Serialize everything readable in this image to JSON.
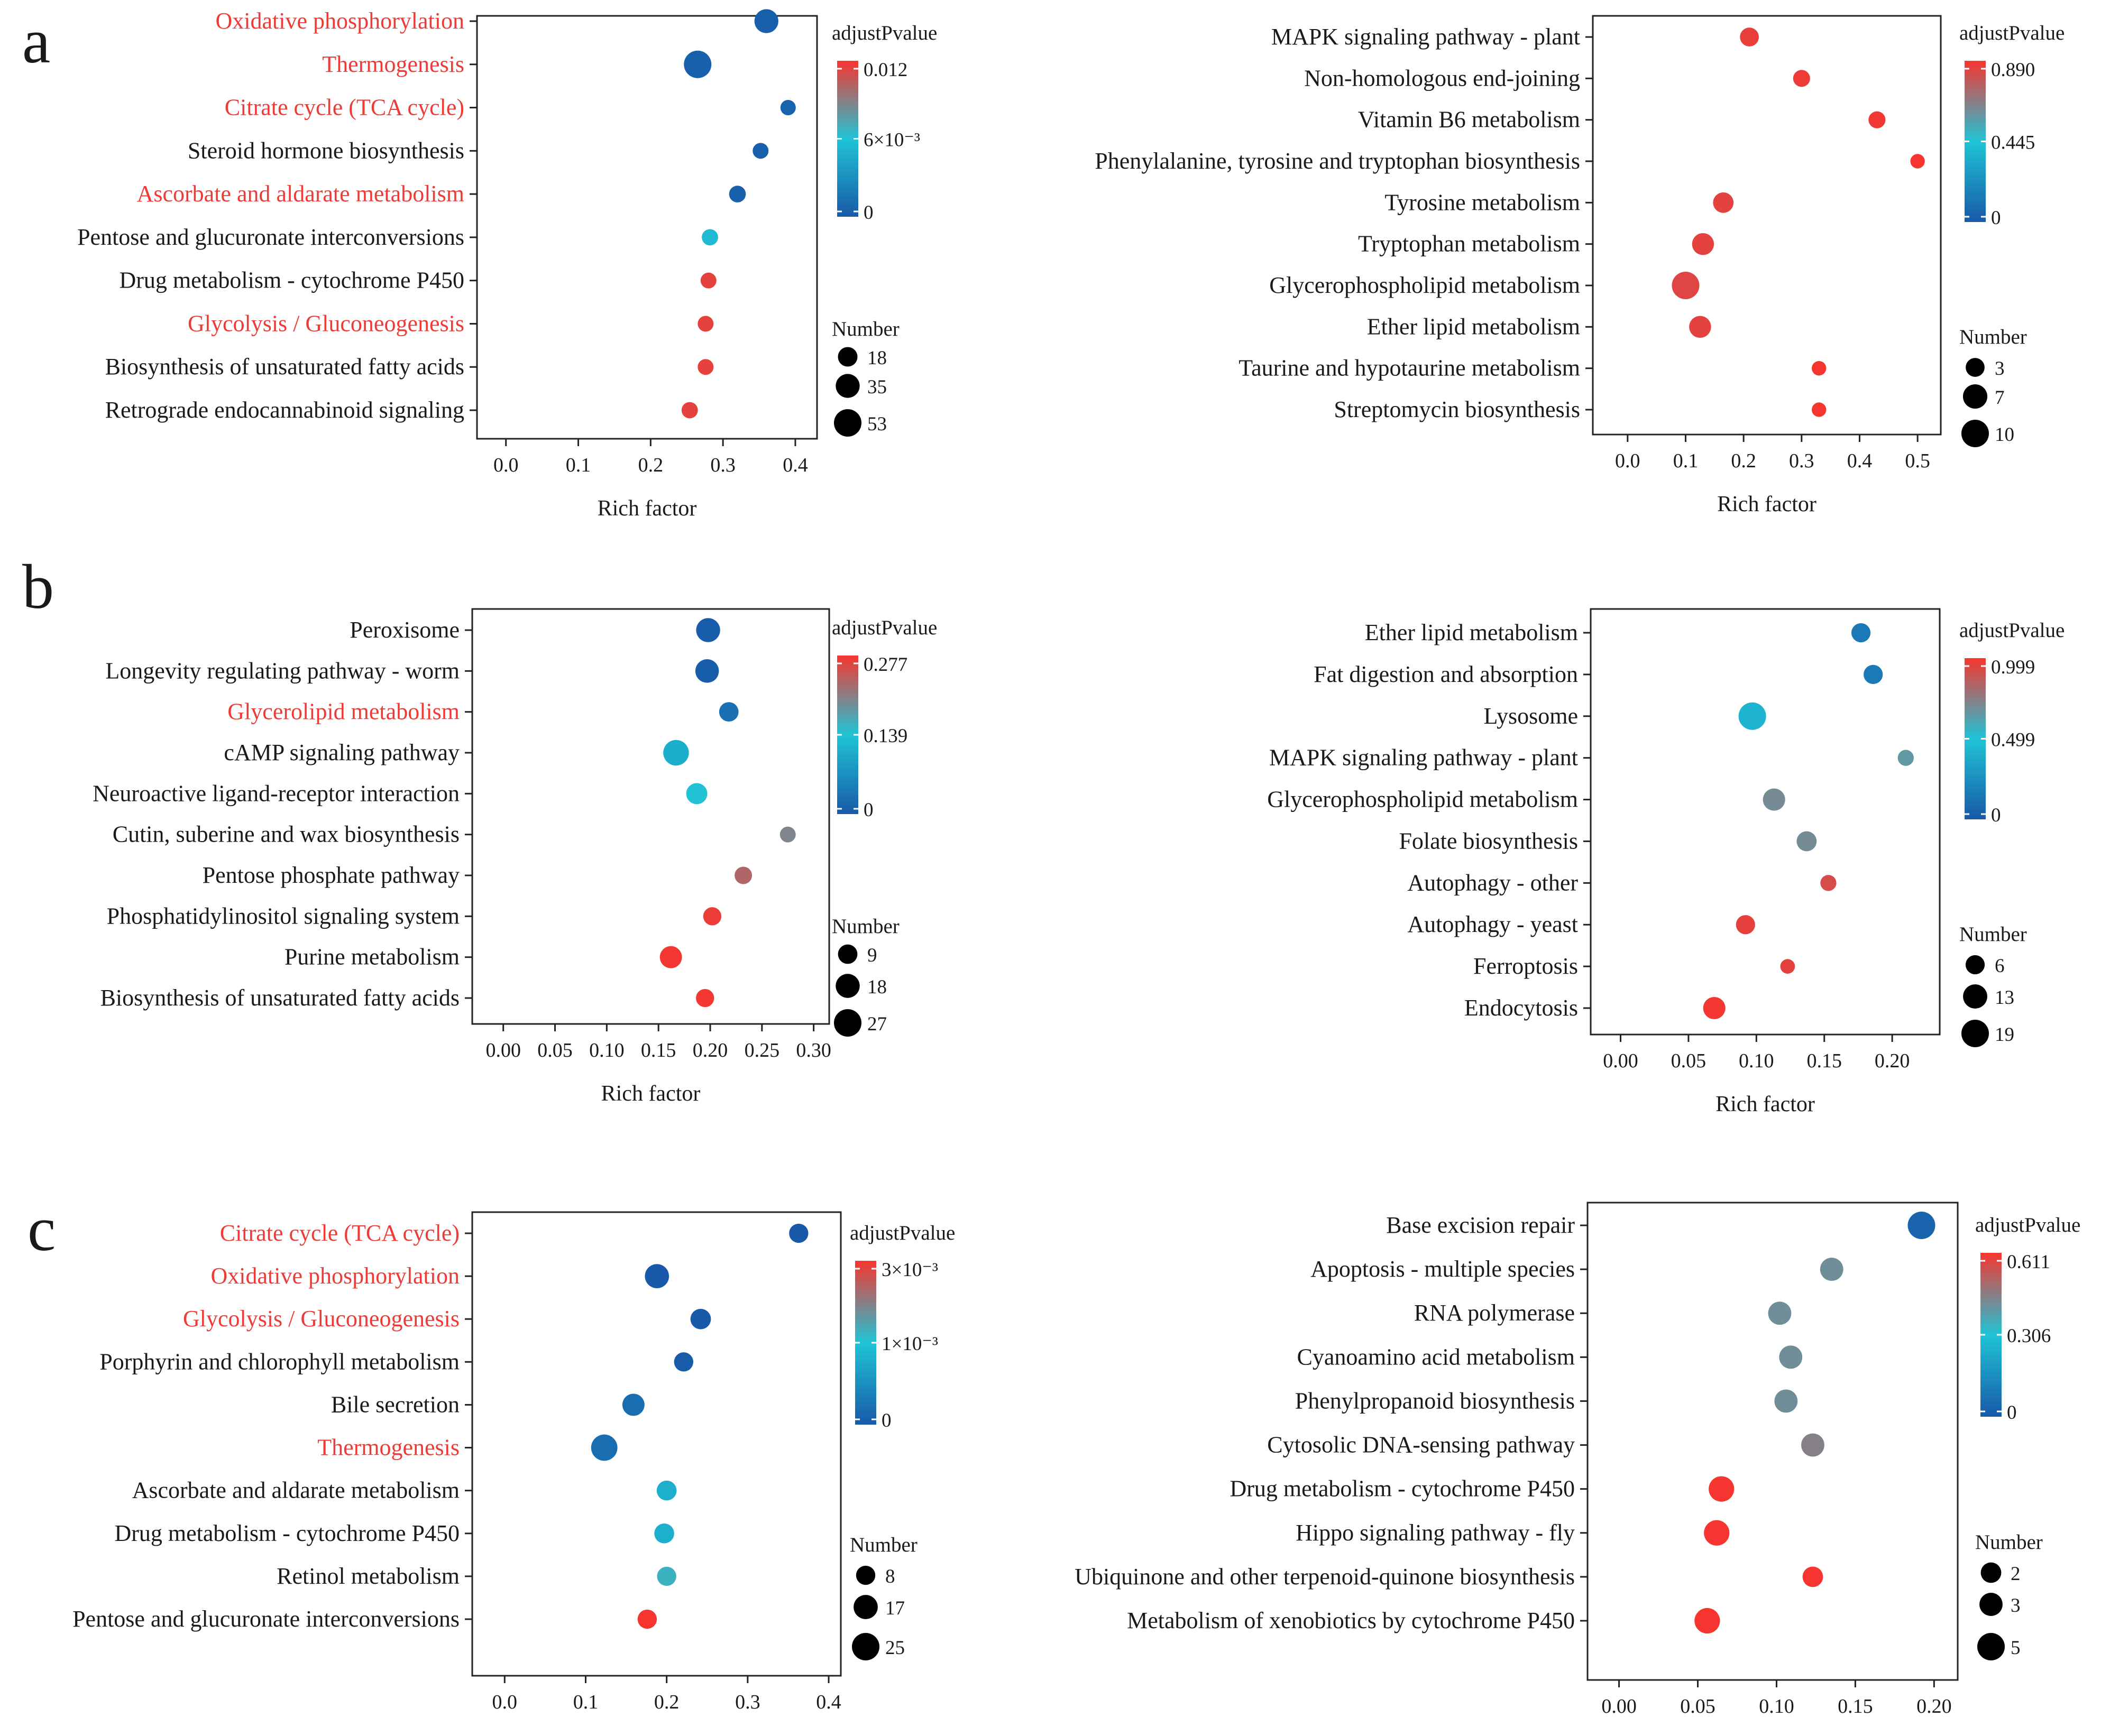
{
  "figure": {
    "panel_labels": [
      "a",
      "b",
      "c"
    ]
  },
  "colors": {
    "low": "#1859a8",
    "mid": "#1fc4d6",
    "high": "#f7352f",
    "highlight_label": "#ee3b36",
    "text": "#1a1a1a"
  },
  "chart_data": [
    {
      "id": "a-left",
      "panel": "a",
      "type": "scatter",
      "title": "",
      "xlabel": "Rich factor",
      "ylabel": "",
      "xlim": [
        -0.04,
        0.43
      ],
      "xticks": [
        0.0,
        0.1,
        0.2,
        0.3,
        0.4
      ],
      "xtick_labels": [
        "0.0",
        "0.1",
        "0.2",
        "0.3",
        "0.4"
      ],
      "grid": false,
      "categories": [
        "Oxidative phosphorylation",
        "Thermogenesis",
        "Citrate cycle (TCA cycle)",
        "Steroid hormone biosynthesis",
        "Ascorbate and aldarate metabolism",
        "Pentose and glucuronate interconversions",
        "Drug metabolism - cytochrome P450",
        "Glycolysis / Gluconeogenesis",
        "Biosynthesis of unsaturated fatty acids",
        "Retrograde endocannabinoid signaling"
      ],
      "highlighted": [
        true,
        true,
        true,
        false,
        true,
        false,
        false,
        true,
        false,
        false
      ],
      "rich_factor": [
        0.36,
        0.265,
        0.39,
        0.352,
        0.32,
        0.282,
        0.28,
        0.276,
        0.276,
        0.254
      ],
      "number": [
        35,
        53,
        7,
        8,
        10,
        9,
        8,
        8,
        8,
        9
      ],
      "adjustPvalue": [
        0.0004,
        0.0004,
        0.0005,
        0.0004,
        0.0004,
        0.0055,
        0.0115,
        0.0115,
        0.0115,
        0.0115
      ],
      "color_legend": {
        "title": "adjustPvalue",
        "range": [
          0,
          0.012
        ],
        "tick_labels": [
          "0.012",
          "6×10⁻³",
          "0"
        ]
      },
      "size_legend": {
        "title": "Number",
        "values": [
          18,
          35,
          53
        ],
        "labels": [
          "18",
          "35",
          "53"
        ]
      }
    },
    {
      "id": "a-right",
      "panel": "a",
      "type": "scatter",
      "title": "",
      "xlabel": "Rich factor",
      "ylabel": "",
      "xlim": [
        -0.06,
        0.54
      ],
      "xticks": [
        0.0,
        0.1,
        0.2,
        0.3,
        0.4,
        0.5
      ],
      "xtick_labels": [
        "0.0",
        "0.1",
        "0.2",
        "0.3",
        "0.4",
        "0.5"
      ],
      "grid": false,
      "categories": [
        "MAPK signaling pathway - plant",
        "Non-homologous end-joining",
        "Vitamin B6 metabolism",
        "Phenylalanine, tyrosine and tryptophan biosynthesis",
        "Tyrosine metabolism",
        "Tryptophan metabolism",
        "Glycerophospholipid metabolism",
        "Ether lipid metabolism",
        "Taurine and hypotaurine metabolism",
        "Streptomycin biosynthesis"
      ],
      "highlighted": [
        false,
        false,
        false,
        false,
        false,
        false,
        false,
        false,
        false,
        false
      ],
      "rich_factor": [
        0.21,
        0.3,
        0.43,
        0.5,
        0.165,
        0.13,
        0.1,
        0.125,
        0.33,
        0.33
      ],
      "number": [
        3,
        2,
        2,
        1,
        4,
        5,
        10,
        5,
        1,
        1
      ],
      "adjustPvalue": [
        0.86,
        0.87,
        0.88,
        0.89,
        0.85,
        0.85,
        0.84,
        0.85,
        0.89,
        0.89
      ],
      "color_legend": {
        "title": "adjustPvalue",
        "range": [
          0,
          0.89
        ],
        "tick_labels": [
          "0.890",
          "0.445",
          "0"
        ]
      },
      "size_legend": {
        "title": "Number",
        "values": [
          3,
          7,
          10
        ],
        "labels": [
          "3",
          "7",
          "10"
        ]
      }
    },
    {
      "id": "b-left",
      "panel": "b",
      "type": "scatter",
      "title": "",
      "xlabel": "Rich factor",
      "ylabel": "",
      "xlim": [
        -0.03,
        0.315
      ],
      "xticks": [
        0.0,
        0.05,
        0.1,
        0.15,
        0.2,
        0.25,
        0.3
      ],
      "xtick_labels": [
        "0.00",
        "0.05",
        "0.10",
        "0.15",
        "0.20",
        "0.25",
        "0.30"
      ],
      "grid": false,
      "categories": [
        "Peroxisome",
        "Longevity regulating pathway - worm",
        "Glycerolipid metabolism",
        "cAMP signaling pathway",
        "Neuroactive ligand-receptor interaction",
        "Cutin, suberine and wax biosynthesis",
        "Pentose phosphate pathway",
        "Phosphatidylinositol signaling system",
        "Purine metabolism",
        "Biosynthesis of unsaturated fatty acids"
      ],
      "highlighted": [
        false,
        false,
        true,
        false,
        false,
        false,
        false,
        false,
        false,
        false
      ],
      "rich_factor": [
        0.198,
        0.197,
        0.218,
        0.167,
        0.187,
        0.275,
        0.232,
        0.202,
        0.162,
        0.195
      ],
      "number": [
        18,
        17,
        9,
        22,
        12,
        4,
        6,
        7,
        14,
        7
      ],
      "adjustPvalue": [
        0.005,
        0.005,
        0.03,
        0.11,
        0.14,
        0.2,
        0.23,
        0.27,
        0.275,
        0.275
      ],
      "color_legend": {
        "title": "adjustPvalue",
        "range": [
          0,
          0.277
        ],
        "tick_labels": [
          "0.277",
          "0.139",
          "0"
        ]
      },
      "size_legend": {
        "title": "Number",
        "values": [
          9,
          18,
          27
        ],
        "labels": [
          "9",
          "18",
          "27"
        ]
      }
    },
    {
      "id": "b-right",
      "panel": "b",
      "type": "scatter",
      "title": "",
      "xlabel": "Rich factor",
      "ylabel": "",
      "xlim": [
        -0.022,
        0.235
      ],
      "xticks": [
        0.0,
        0.05,
        0.1,
        0.15,
        0.2
      ],
      "xtick_labels": [
        "0.00",
        "0.05",
        "0.10",
        "0.15",
        "0.20"
      ],
      "grid": false,
      "categories": [
        "Ether lipid metabolism",
        "Fat digestion and absorption",
        "Lysosome",
        "MAPK signaling pathway - plant",
        "Glycerophospholipid metabolism",
        "Folate biosynthesis",
        "Autophagy - other",
        "Autophagy - yeast",
        "Ferroptosis",
        "Endocytosis"
      ],
      "highlighted": [
        false,
        false,
        false,
        false,
        false,
        false,
        false,
        false,
        false,
        false
      ],
      "rich_factor": [
        0.177,
        0.186,
        0.097,
        0.21,
        0.113,
        0.137,
        0.153,
        0.092,
        0.123,
        0.069
      ],
      "number": [
        6,
        6,
        19,
        3,
        10,
        7,
        3,
        6,
        2,
        10
      ],
      "adjustPvalue": [
        0.15,
        0.15,
        0.42,
        0.65,
        0.7,
        0.7,
        0.92,
        0.96,
        0.96,
        0.99
      ],
      "color_legend": {
        "title": "adjustPvalue",
        "range": [
          0,
          0.999
        ],
        "tick_labels": [
          "0.999",
          "0.499",
          "0"
        ]
      },
      "size_legend": {
        "title": "Number",
        "values": [
          6,
          13,
          19
        ],
        "labels": [
          "6",
          "13",
          "19"
        ]
      }
    },
    {
      "id": "c-left",
      "panel": "c",
      "type": "scatter",
      "title": "",
      "xlabel": "Rich factor",
      "ylabel": "",
      "xlim": [
        -0.04,
        0.415
      ],
      "xticks": [
        0.0,
        0.1,
        0.2,
        0.3,
        0.4
      ],
      "xtick_labels": [
        "0.0",
        "0.1",
        "0.2",
        "0.3",
        "0.4"
      ],
      "grid": false,
      "categories": [
        "Citrate cycle (TCA cycle)",
        "Oxidative phosphorylation",
        "Glycolysis / Gluconeogenesis",
        "Porphyrin and chlorophyll metabolism",
        "Bile secretion",
        "Thermogenesis",
        "Ascorbate and aldarate metabolism",
        "Drug metabolism - cytochrome P450",
        "Retinol metabolism",
        "Pentose and glucuronate interconversions"
      ],
      "highlighted": [
        true,
        true,
        true,
        false,
        false,
        true,
        false,
        false,
        false,
        false
      ],
      "rich_factor": [
        0.363,
        0.188,
        0.242,
        0.221,
        0.159,
        0.123,
        0.2,
        0.197,
        0.2,
        0.176
      ],
      "number": [
        8,
        17,
        10,
        8,
        13,
        22,
        9,
        9,
        8,
        8
      ],
      "adjustPvalue": [
        2e-05,
        2e-05,
        2e-05,
        3e-05,
        0.0003,
        0.0003,
        0.0012,
        0.0012,
        0.0017,
        0.003
      ],
      "color_legend": {
        "title": "adjustPvalue",
        "range": [
          0,
          0.003
        ],
        "tick_labels": [
          "3×10⁻³",
          "1×10⁻³",
          "0"
        ]
      },
      "size_legend": {
        "title": "Number",
        "values": [
          8,
          17,
          25
        ],
        "labels": [
          "8",
          "17",
          "25"
        ]
      }
    },
    {
      "id": "c-right",
      "panel": "c",
      "type": "scatter",
      "title": "",
      "xlabel": "Rich factor",
      "ylabel": "",
      "xlim": [
        -0.02,
        0.215
      ],
      "xticks": [
        0.0,
        0.05,
        0.1,
        0.15,
        0.2
      ],
      "xtick_labels": [
        "0.00",
        "0.05",
        "0.10",
        "0.15",
        "0.20"
      ],
      "grid": false,
      "categories": [
        "Base excision repair",
        "Apoptosis - multiple species",
        "RNA polymerase",
        "Cyanoamino acid metabolism",
        "Phenylpropanoid biosynthesis",
        "Cytosolic DNA-sensing pathway",
        "Drug metabolism - cytochrome P450",
        "Hippo signaling pathway - fly",
        "Ubiquinone and other terpenoid-quinone biosynthesis",
        "Metabolism of xenobiotics by cytochrome P450"
      ],
      "highlighted": [
        false,
        false,
        false,
        false,
        false,
        false,
        false,
        false,
        false,
        false
      ],
      "rich_factor": [
        0.192,
        0.135,
        0.102,
        0.109,
        0.106,
        0.123,
        0.065,
        0.062,
        0.123,
        0.056
      ],
      "number": [
        5,
        3,
        3,
        3,
        3,
        3,
        4,
        4,
        2,
        4
      ],
      "adjustPvalue": [
        0.03,
        0.42,
        0.42,
        0.42,
        0.42,
        0.45,
        0.61,
        0.61,
        0.61,
        0.61
      ],
      "color_legend": {
        "title": "adjustPvalue",
        "range": [
          0,
          0.611
        ],
        "tick_labels": [
          "0.611",
          "0.306",
          "0"
        ]
      },
      "size_legend": {
        "title": "Number",
        "values": [
          2,
          3,
          5
        ],
        "labels": [
          "2",
          "3",
          "5"
        ]
      }
    }
  ]
}
